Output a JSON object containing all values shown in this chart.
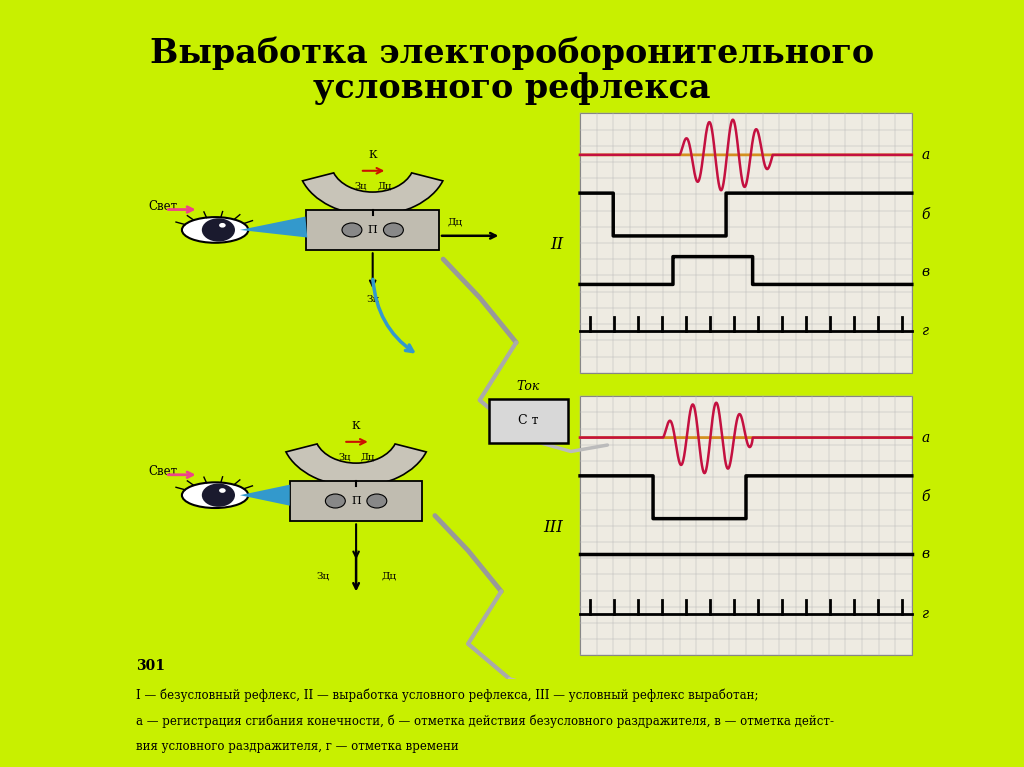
{
  "title_line1": "Выработка электороборонительного",
  "title_line2": "условного рефлекса",
  "bg_color": "#c8f000",
  "main_bg": "#f2ede2",
  "caption_bg": "#dddbd4",
  "caption_line1": "I — безусловный рефлекс, II — выработка условного рефлекса, III — условный рефлекс выработан;",
  "caption_line2": "а — регистрация сгибания конечности, б — отметка действия безусловного раздражителя, в — отметка дейст-",
  "caption_line3": "вия условного раздражителя, г — отметка времени",
  "red_sig": "#c41040",
  "orange_sig": "#d49020",
  "grid_color": "#b8b8b8",
  "panel_bg": "#f0ece0",
  "box_arc_fill": "#c8c4b8",
  "box_p_fill": "#c0bcb0",
  "blue_arrow": "#3399cc",
  "pink_arrow": "#ee4488"
}
